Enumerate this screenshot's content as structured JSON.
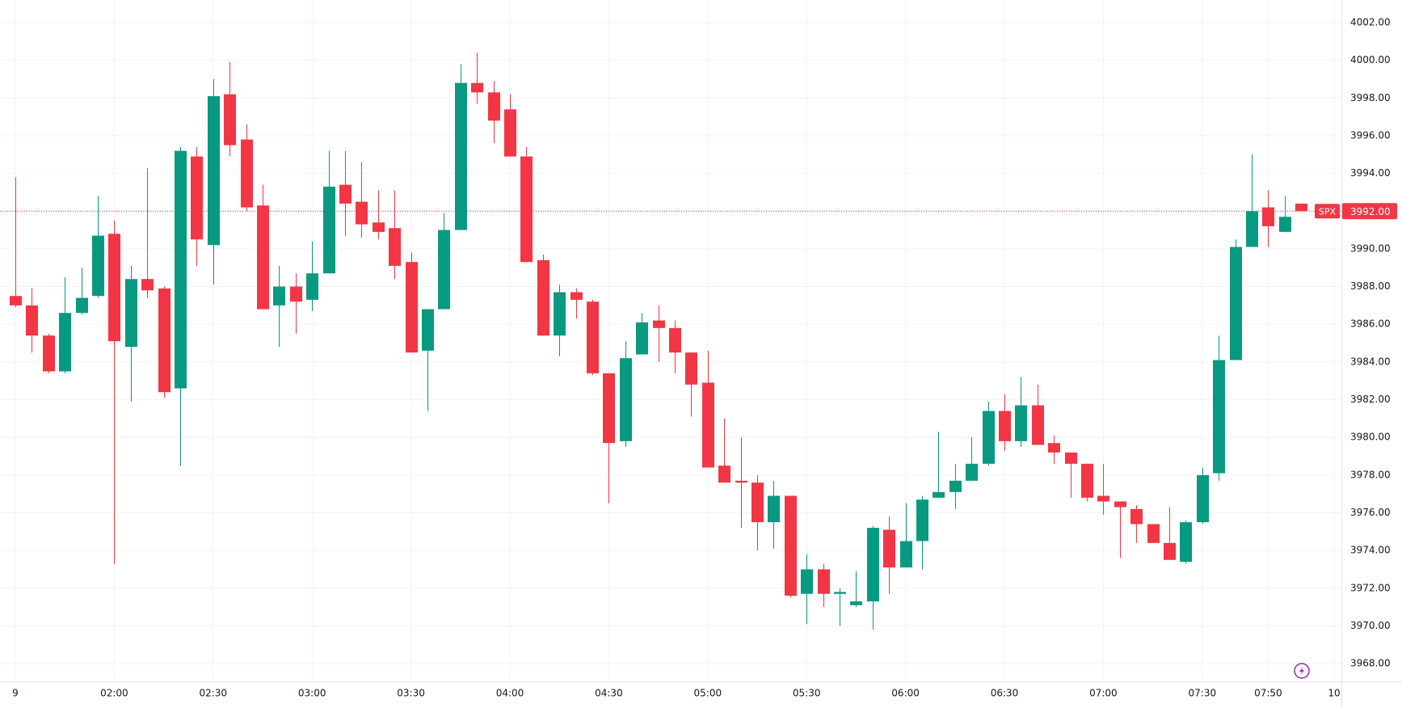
{
  "chart_data": {
    "type": "candlestick",
    "up_color": "#089981",
    "down_color": "#f23645",
    "grid": true,
    "x": [
      0,
      1,
      2,
      3,
      4,
      5,
      6,
      7,
      8,
      9,
      10,
      11,
      12,
      13,
      14,
      15,
      16,
      17,
      18,
      19,
      20,
      21,
      22,
      23,
      24,
      25,
      26,
      27,
      28,
      29,
      30,
      31,
      32,
      33,
      34,
      35,
      36,
      37,
      38,
      39,
      40,
      41,
      42,
      43,
      44,
      45,
      46,
      47,
      48,
      49,
      50,
      51,
      52,
      53,
      54,
      55,
      56,
      57,
      58,
      59,
      60,
      61,
      62,
      63,
      64,
      65,
      66,
      67,
      68,
      69,
      70,
      71,
      72,
      73,
      74,
      75,
      76,
      77,
      78
    ],
    "open": [
      3987.5,
      3987.0,
      3985.4,
      3983.5,
      3986.6,
      3987.5,
      3990.8,
      3984.8,
      3988.4,
      3987.9,
      3982.6,
      3994.9,
      3990.2,
      3998.2,
      3995.8,
      3992.3,
      3987.0,
      3988.0,
      3987.3,
      3988.7,
      3993.4,
      3992.5,
      3991.4,
      3991.1,
      3989.3,
      3984.6,
      3986.8,
      3991.0,
      3998.8,
      3998.3,
      3997.4,
      3994.9,
      3989.4,
      3985.4,
      3987.7,
      3987.2,
      3983.4,
      3979.8,
      3984.4,
      3986.2,
      3985.8,
      3984.5,
      3982.9,
      3978.5,
      3977.7,
      3977.6,
      3975.5,
      3976.9,
      3971.7,
      3973.0,
      3971.7,
      3971.1,
      3971.3,
      3975.1,
      3973.1,
      3974.5,
      3976.8,
      3977.1,
      3977.7,
      3978.6,
      3981.4,
      3979.8,
      3981.7,
      3979.7,
      3979.2,
      3978.6,
      3976.9,
      3976.6,
      3976.2,
      3975.4,
      3974.4,
      3973.4,
      3975.5,
      3978.1,
      3984.1,
      3990.1,
      3992.2,
      3990.9,
      3992.4
    ],
    "high": [
      3993.8,
      3987.9,
      3985.5,
      3988.5,
      3989.0,
      3992.8,
      3991.5,
      3989.1,
      3994.3,
      3988.0,
      3995.4,
      3995.4,
      3999.0,
      3999.9,
      3996.6,
      3993.4,
      3989.1,
      3988.7,
      3990.4,
      3995.2,
      3995.2,
      3994.6,
      3993.1,
      3993.1,
      3989.8,
      3986.8,
      3991.9,
      3999.8,
      4000.4,
      3998.9,
      3998.2,
      3995.4,
      3989.7,
      3988.1,
      3987.9,
      3987.3,
      3983.4,
      3985.1,
      3986.6,
      3987.0,
      3986.2,
      3984.5,
      3984.6,
      3981.0,
      3980.0,
      3978.0,
      3977.7,
      3976.9,
      3973.8,
      3973.3,
      3972.0,
      3972.9,
      3975.3,
      3975.8,
      3976.5,
      3976.9,
      3980.3,
      3978.6,
      3980.0,
      3981.9,
      3982.3,
      3983.2,
      3982.8,
      3980.1,
      3979.2,
      3978.6,
      3978.6,
      3976.6,
      3976.4,
      3975.4,
      3976.3,
      3975.6,
      3978.4,
      3985.4,
      3990.5,
      3995.0,
      3993.1,
      3992.8,
      3992.4
    ],
    "low": [
      3986.9,
      3984.5,
      3983.4,
      3983.4,
      3986.5,
      3987.4,
      3973.3,
      3981.9,
      3987.4,
      3982.1,
      3978.5,
      3989.1,
      3988.1,
      3994.9,
      3992.0,
      3986.8,
      3984.8,
      3985.5,
      3986.7,
      3988.7,
      3990.7,
      3990.6,
      3990.5,
      3988.4,
      3984.5,
      3981.4,
      3986.8,
      3991.0,
      3997.7,
      3995.6,
      3994.9,
      3989.3,
      3985.4,
      3984.3,
      3986.3,
      3983.3,
      3976.5,
      3979.5,
      3984.4,
      3984.0,
      3983.4,
      3981.1,
      3978.4,
      3977.6,
      3975.2,
      3974.0,
      3974.1,
      3971.5,
      3970.1,
      3971.0,
      3970.0,
      3971.0,
      3969.8,
      3971.7,
      3973.1,
      3973.0,
      3976.8,
      3976.2,
      3977.7,
      3978.5,
      3979.3,
      3979.5,
      3979.6,
      3978.6,
      3976.8,
      3976.6,
      3975.9,
      3973.6,
      3974.4,
      3974.4,
      3973.5,
      3973.3,
      3975.4,
      3977.7,
      3984.1,
      3990.1,
      3990.1,
      3990.9,
      3992.0
    ],
    "close": [
      3987.0,
      3985.4,
      3983.5,
      3986.6,
      3987.4,
      3990.7,
      3985.1,
      3988.4,
      3987.8,
      3982.4,
      3995.2,
      3990.5,
      3998.1,
      3995.5,
      3992.2,
      3986.8,
      3988.0,
      3987.2,
      3988.7,
      3993.3,
      3992.4,
      3991.3,
      3990.9,
      3989.1,
      3984.5,
      3986.8,
      3991.0,
      3998.8,
      3998.3,
      3996.8,
      3994.9,
      3989.3,
      3985.4,
      3987.7,
      3987.3,
      3983.4,
      3979.7,
      3984.2,
      3986.1,
      3985.8,
      3984.5,
      3982.8,
      3978.4,
      3977.6,
      3977.6,
      3975.5,
      3976.9,
      3971.6,
      3973.0,
      3971.7,
      3971.8,
      3971.3,
      3975.2,
      3973.1,
      3974.5,
      3976.7,
      3977.1,
      3977.7,
      3978.6,
      3981.4,
      3979.8,
      3981.7,
      3979.6,
      3979.2,
      3978.6,
      3976.8,
      3976.6,
      3976.3,
      3975.4,
      3974.4,
      3973.5,
      3975.5,
      3978.0,
      3984.1,
      3990.1,
      3992.0,
      3991.2,
      3991.7,
      3992.0
    ],
    "xlim": [
      -0.93,
      80.44
    ],
    "xticks": [
      {
        "value": 0,
        "label": "9"
      },
      {
        "value": 6,
        "label": "02:00"
      },
      {
        "value": 12,
        "label": "02:30"
      },
      {
        "value": 18,
        "label": "03:00"
      },
      {
        "value": 24,
        "label": "03:30"
      },
      {
        "value": 30,
        "label": "04:00"
      },
      {
        "value": 36,
        "label": "04:30"
      },
      {
        "value": 42,
        "label": "05:00"
      },
      {
        "value": 48,
        "label": "05:30"
      },
      {
        "value": 54,
        "label": "06:00"
      },
      {
        "value": 60,
        "label": "06:30"
      },
      {
        "value": 66,
        "label": "07:00"
      },
      {
        "value": 72,
        "label": "07:30"
      },
      {
        "value": 76,
        "label": "07:50"
      },
      {
        "value": 80,
        "label": "10"
      }
    ],
    "ylim": [
      3967.06,
      4003.2
    ],
    "yticks": [
      {
        "value": 3968,
        "label": "3968.00"
      },
      {
        "value": 3970,
        "label": "3970.00"
      },
      {
        "value": 3972,
        "label": "3972.00"
      },
      {
        "value": 3974,
        "label": "3974.00"
      },
      {
        "value": 3976,
        "label": "3976.00"
      },
      {
        "value": 3978,
        "label": "3978.00"
      },
      {
        "value": 3980,
        "label": "3980.00"
      },
      {
        "value": 3982,
        "label": "3982.00"
      },
      {
        "value": 3984,
        "label": "3984.00"
      },
      {
        "value": 3986,
        "label": "3986.00"
      },
      {
        "value": 3988,
        "label": "3988.00"
      },
      {
        "value": 3990,
        "label": "3990.00"
      },
      {
        "value": 3992,
        "label": "3992.00"
      },
      {
        "value": 3994,
        "label": "3994.00"
      },
      {
        "value": 3996,
        "label": "3996.00"
      },
      {
        "value": 3998,
        "label": "3998.00"
      },
      {
        "value": 4000,
        "label": "4000.00"
      },
      {
        "value": 4002,
        "label": "4002.00"
      }
    ],
    "price_tag": {
      "symbol": "SPX",
      "value": 3992,
      "value_label": "3992.00"
    }
  }
}
